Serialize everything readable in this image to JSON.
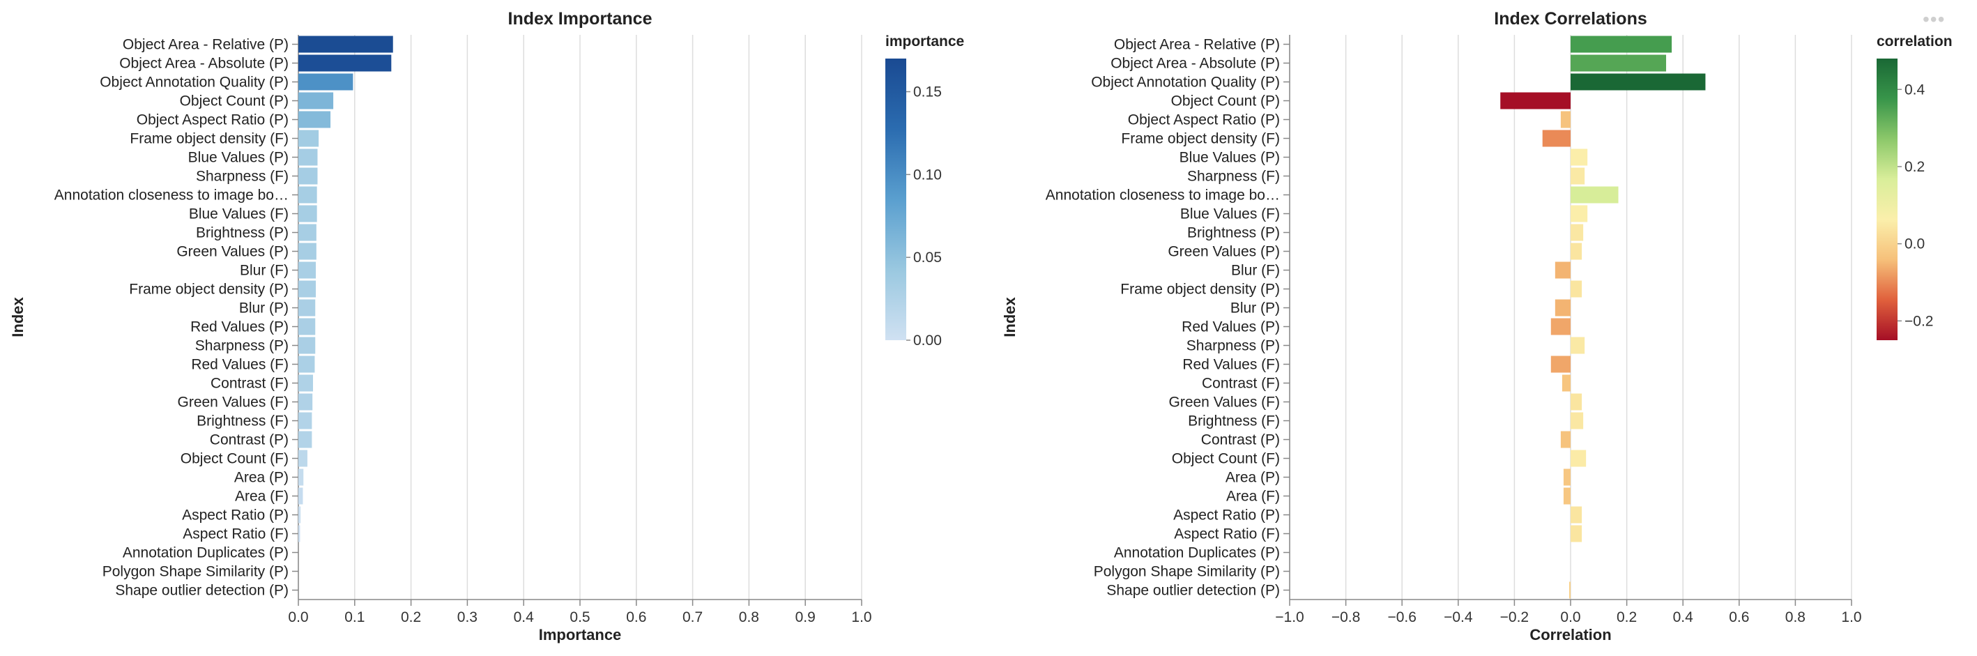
{
  "chart_data": [
    {
      "type": "bar",
      "orientation": "horizontal",
      "title": "Index Importance",
      "xlabel": "Importance",
      "ylabel": "Index",
      "xlim": [
        0,
        1
      ],
      "xticks": [
        "0.0",
        "0.1",
        "0.2",
        "0.3",
        "0.4",
        "0.5",
        "0.6",
        "0.7",
        "0.8",
        "0.9",
        "1.0"
      ],
      "grid": true,
      "legend": {
        "title": "importance",
        "placement": "right",
        "domain": [
          0,
          0.17
        ],
        "ticks": [
          "0.15",
          "0.10",
          "0.05",
          "0.00"
        ],
        "tick_values": [
          0.15,
          0.1,
          0.05,
          0.0
        ],
        "colors": [
          "#d0e1f2",
          "#9ac8e0",
          "#5a9fcf",
          "#2b6cb0",
          "#1a4a92"
        ]
      },
      "categories": [
        "Object Area - Relative (P)",
        "Object Area - Absolute (P)",
        "Object Annotation Quality (P)",
        "Object Count (P)",
        "Object Aspect Ratio (P)",
        "Frame object density (F)",
        "Blue Values (P)",
        "Sharpness (F)",
        "Annotation closeness to image bo…",
        "Blue Values (F)",
        "Brightness (P)",
        "Green Values (P)",
        "Blur (F)",
        "Frame object density (P)",
        "Blur (P)",
        "Red Values (P)",
        "Sharpness (P)",
        "Red Values (F)",
        "Contrast (F)",
        "Green Values (F)",
        "Brightness (F)",
        "Contrast (P)",
        "Object Count (F)",
        "Area (P)",
        "Area (F)",
        "Aspect Ratio (P)",
        "Aspect Ratio (F)",
        "Annotation Duplicates (P)",
        "Polygon Shape Similarity (P)",
        "Shape outlier detection (P)"
      ],
      "values": [
        0.168,
        0.165,
        0.097,
        0.062,
        0.057,
        0.036,
        0.034,
        0.034,
        0.033,
        0.033,
        0.032,
        0.032,
        0.031,
        0.031,
        0.03,
        0.03,
        0.03,
        0.029,
        0.026,
        0.025,
        0.024,
        0.024,
        0.016,
        0.009,
        0.008,
        0.004,
        0.003,
        0.0,
        0.0,
        0.0
      ]
    },
    {
      "type": "bar",
      "orientation": "horizontal",
      "title": "Index Correlations",
      "xlabel": "Correlation",
      "ylabel": "Index",
      "xlim": [
        -1,
        1
      ],
      "xticks": [
        "−1.0",
        "−0.8",
        "−0.6",
        "−0.4",
        "−0.2",
        "0.0",
        "0.2",
        "0.4",
        "0.6",
        "0.8",
        "1.0"
      ],
      "grid": true,
      "legend": {
        "title": "correlation",
        "placement": "right",
        "domain": [
          -0.25,
          0.48
        ],
        "ticks": [
          "0.4",
          "0.2",
          "0.0",
          "−0.2"
        ],
        "tick_values": [
          0.4,
          0.2,
          0.0,
          -0.2
        ],
        "colors": [
          "#a50f26",
          "#e0603c",
          "#f6c07a",
          "#fbefab",
          "#d9ee9a",
          "#8cc86a",
          "#38954a",
          "#1a6835"
        ]
      },
      "categories": [
        "Object Area - Relative (P)",
        "Object Area - Absolute (P)",
        "Object Annotation Quality (P)",
        "Object Count (P)",
        "Object Aspect Ratio (P)",
        "Frame object density (F)",
        "Blue Values (P)",
        "Sharpness (F)",
        "Annotation closeness to image bo…",
        "Blue Values (F)",
        "Brightness (P)",
        "Green Values (P)",
        "Blur (F)",
        "Frame object density (P)",
        "Blur (P)",
        "Red Values (P)",
        "Sharpness (P)",
        "Red Values (F)",
        "Contrast (F)",
        "Green Values (F)",
        "Brightness (F)",
        "Contrast (P)",
        "Object Count (F)",
        "Area (P)",
        "Area (F)",
        "Aspect Ratio (P)",
        "Aspect Ratio (F)",
        "Annotation Duplicates (P)",
        "Polygon Shape Similarity (P)",
        "Shape outlier detection (P)"
      ],
      "values": [
        0.36,
        0.34,
        0.48,
        -0.25,
        -0.035,
        -0.1,
        0.06,
        0.05,
        0.17,
        0.06,
        0.045,
        0.04,
        -0.055,
        0.04,
        -0.055,
        -0.07,
        0.05,
        -0.07,
        -0.03,
        0.04,
        0.045,
        -0.035,
        0.055,
        -0.025,
        -0.025,
        0.04,
        0.04,
        0.0,
        0.0,
        -0.005
      ]
    }
  ]
}
